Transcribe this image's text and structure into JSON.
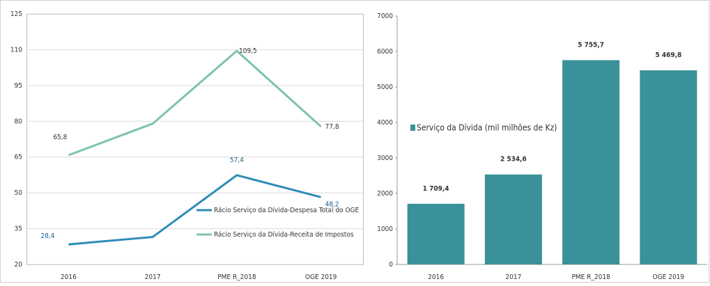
{
  "chart_data": [
    {
      "type": "line",
      "categories": [
        "2016",
        "2017",
        "PME R_2018",
        "OGE 2019"
      ],
      "series": [
        {
          "name": "Rácio Serviço da Dívida-Despesa Total do OGE",
          "color": "#2e8bb8",
          "values": [
            28.4,
            31.5,
            57.4,
            48.2
          ],
          "value_labels": [
            "28,4",
            null,
            "57,4",
            "48,2"
          ]
        },
        {
          "name": "Rácio Serviço da Dívida-Receita de Impostos",
          "color": "#7cc4a8",
          "values": [
            65.8,
            79,
            109.5,
            77.8
          ],
          "value_labels": [
            "65,8",
            null,
            "109,5",
            "77,8"
          ]
        }
      ],
      "ylim": [
        20,
        125
      ],
      "yticks": [
        20,
        35,
        50,
        65,
        80,
        95,
        110,
        125
      ],
      "grid": true
    },
    {
      "type": "bar",
      "categories": [
        "2016",
        "2017",
        "PME R_2018",
        "OGE 2019"
      ],
      "series": [
        {
          "name": "Serviço da Dívida (mil milhões de Kz)",
          "color": "#3a9199",
          "values": [
            1709.4,
            2534.6,
            5755.7,
            5469.8
          ],
          "value_labels": [
            "1 709,4",
            "2 534,6",
            "5 755,7",
            "5 469,8"
          ]
        }
      ],
      "ylim": [
        0,
        7000
      ],
      "yticks": [
        0,
        1000,
        2000,
        3000,
        4000,
        5000,
        6000,
        7000
      ],
      "grid": false
    }
  ]
}
